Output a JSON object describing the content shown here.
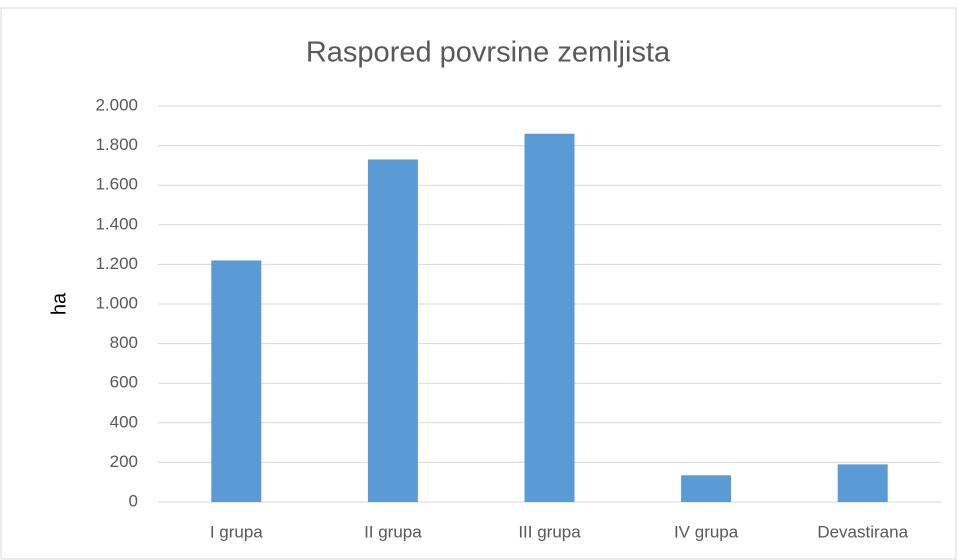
{
  "chart_data": {
    "type": "bar",
    "title": "Raspored povrsine zemljista",
    "y_label": "ha",
    "categories": [
      "I grupa",
      "II grupa",
      "III grupa",
      "IV grupa",
      "Devastirana"
    ],
    "values": [
      1220,
      1730,
      1860,
      135,
      190
    ],
    "color": "#5b9bd5",
    "ylim": [
      0,
      2000
    ],
    "yticks": [
      0,
      200,
      400,
      600,
      800,
      {
        "value": 1000,
        "label": "1.000"
      },
      {
        "value": 1200,
        "label": "1.200"
      },
      {
        "value": 1400,
        "label": "1.400"
      },
      {
        "value": 1600,
        "label": "1.600"
      },
      {
        "value": 1800,
        "label": "1.800"
      },
      {
        "value": 2000,
        "label": "2.000"
      }
    ],
    "grid": true
  }
}
